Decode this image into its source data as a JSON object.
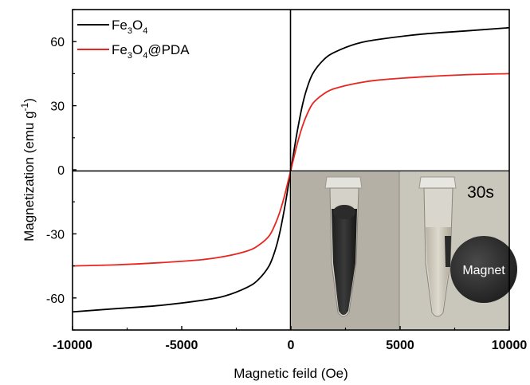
{
  "chart_data": {
    "type": "line",
    "xlabel": "Magnetic feild (Oe)",
    "ylabel": "Magnetization (emu g",
    "ylabel_sup": "-1",
    "ylabel_close": ")",
    "xlim": [
      -10000,
      10000
    ],
    "ylim": [
      -75,
      75
    ],
    "xticks": [
      -10000,
      -5000,
      0,
      5000,
      10000
    ],
    "xtick_labels": [
      "-10000",
      "-5000",
      "0",
      "5000",
      "10000"
    ],
    "yticks": [
      -60,
      -30,
      0,
      30,
      60
    ],
    "ytick_labels": [
      "-60",
      "-30",
      "0",
      "30",
      "60"
    ],
    "grid": false,
    "legend_position": "top-left",
    "series": [
      {
        "name": "Fe3O4",
        "legend": {
          "p1": "Fe",
          "s1": "3",
          "p2": "O",
          "s2": "4",
          "p3": ""
        },
        "color": "#000000",
        "x": [
          -10000,
          -8000,
          -6000,
          -4000,
          -3000,
          -2000,
          -1500,
          -1000,
          -700,
          -500,
          -300,
          -150,
          0,
          150,
          300,
          500,
          700,
          1000,
          1500,
          2000,
          3000,
          4000,
          6000,
          8000,
          10000
        ],
        "y": [
          -66.5,
          -65,
          -63.5,
          -61,
          -59,
          -55,
          -51.5,
          -45,
          -37,
          -29,
          -18.5,
          -9.5,
          0,
          9.5,
          18.5,
          29,
          37,
          45,
          51.5,
          55,
          59,
          61,
          63.5,
          65,
          66.5
        ]
      },
      {
        "name": "Fe3O4@PDA",
        "legend": {
          "p1": "Fe",
          "s1": "3",
          "p2": "O",
          "s2": "4",
          "p3": "@PDA"
        },
        "color": "#e8251f",
        "x": [
          -10000,
          -8000,
          -6000,
          -4000,
          -3000,
          -2000,
          -1500,
          -1000,
          -700,
          -500,
          -300,
          -150,
          0,
          150,
          300,
          500,
          700,
          1000,
          1500,
          2000,
          3000,
          4000,
          6000,
          8000,
          10000
        ],
        "y": [
          -45,
          -44.5,
          -43.5,
          -42,
          -40.5,
          -38,
          -35.5,
          -31,
          -25,
          -19.5,
          -12.5,
          -6.3,
          0,
          6.3,
          12.5,
          19.5,
          25,
          31,
          35.5,
          38,
          40.5,
          42,
          43.5,
          44.5,
          45
        ]
      }
    ]
  },
  "inset": {
    "time_label": "30s",
    "magnet_label": "Magnet"
  }
}
